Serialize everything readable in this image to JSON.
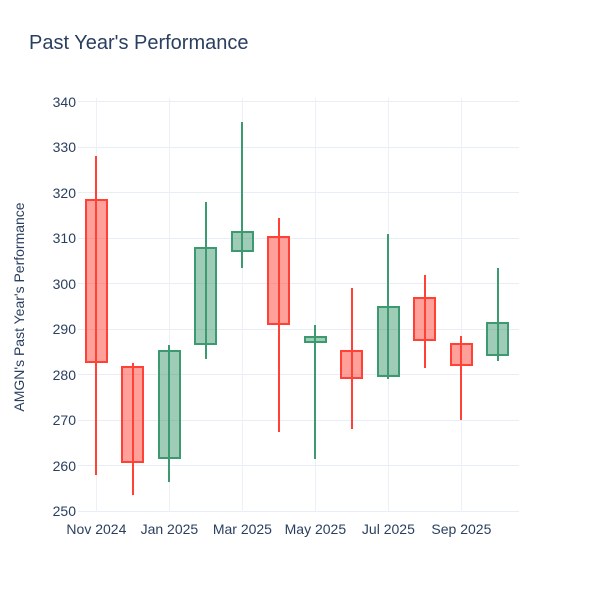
{
  "chart": {
    "title": "Past Year's Performance",
    "y_axis_title": "AMGN's Past Year's Performance"
  },
  "chart_data": {
    "type": "candlestick",
    "title": "Past Year's Performance",
    "xlabel": "",
    "ylabel": "AMGN's Past Year's Performance",
    "ylim": [
      250,
      340
    ],
    "grid": true,
    "legend": "none",
    "yticks": [
      250,
      260,
      270,
      280,
      290,
      300,
      310,
      320,
      330,
      340
    ],
    "xticks": [
      {
        "index": 0,
        "label": "Nov 2024"
      },
      {
        "index": 2,
        "label": "Jan 2025"
      },
      {
        "index": 4,
        "label": "Mar 2025"
      },
      {
        "index": 6,
        "label": "May 2025"
      },
      {
        "index": 8,
        "label": "Jul 2025"
      },
      {
        "index": 10,
        "label": "Sep 2025"
      }
    ],
    "colors": {
      "increasing_line": "#3D9970",
      "increasing_fill": "rgba(61,153,112,0.5)",
      "decreasing_line": "#FF4136",
      "decreasing_fill": "rgba(255,65,54,0.5)",
      "grid": "#e8eef5",
      "text": "#2a3f5f",
      "background": "#ffffff"
    },
    "candles": [
      {
        "x": "Nov 2024",
        "open": 318.5,
        "high": 328.0,
        "low": 258.0,
        "close": 282.5
      },
      {
        "x": "Dec 2024",
        "open": 282.0,
        "high": 282.5,
        "low": 253.5,
        "close": 260.5
      },
      {
        "x": "Jan 2025",
        "open": 261.5,
        "high": 286.5,
        "low": 256.5,
        "close": 285.5
      },
      {
        "x": "Feb 2025",
        "open": 286.5,
        "high": 318.0,
        "low": 283.5,
        "close": 308.0
      },
      {
        "x": "Mar 2025",
        "open": 307.0,
        "high": 335.5,
        "low": 303.5,
        "close": 311.5
      },
      {
        "x": "Apr 2025",
        "open": 310.5,
        "high": 314.5,
        "low": 267.5,
        "close": 291.0
      },
      {
        "x": "May 2025",
        "open": 287.0,
        "high": 291.0,
        "low": 261.5,
        "close": 288.5
      },
      {
        "x": "Jun 2025",
        "open": 285.5,
        "high": 299.0,
        "low": 268.0,
        "close": 279.0
      },
      {
        "x": "Jul 2025",
        "open": 279.5,
        "high": 311.0,
        "low": 279.0,
        "close": 295.0
      },
      {
        "x": "Aug 2025",
        "open": 297.0,
        "high": 302.0,
        "low": 281.5,
        "close": 287.5
      },
      {
        "x": "Sep 2025",
        "open": 287.0,
        "high": 288.5,
        "low": 270.0,
        "close": 282.0
      },
      {
        "x": "Oct 2025",
        "open": 284.0,
        "high": 303.5,
        "low": 283.0,
        "close": 291.5
      }
    ]
  }
}
